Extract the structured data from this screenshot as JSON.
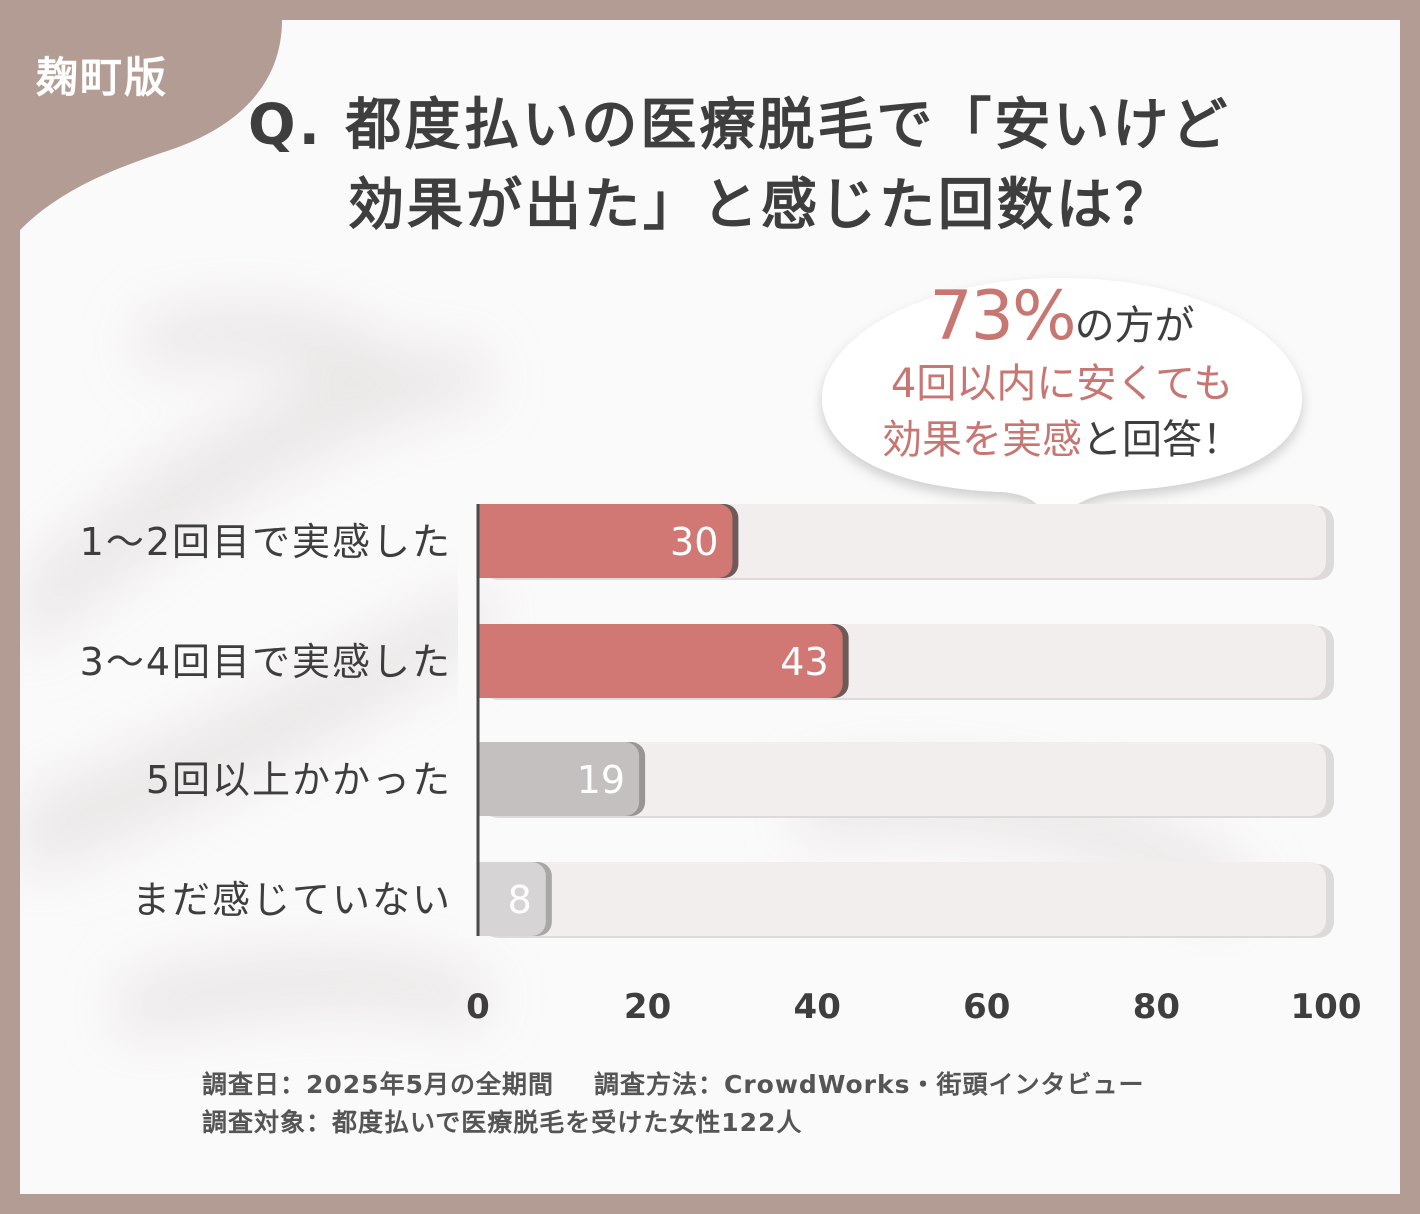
{
  "brand": {
    "label": "麹町版"
  },
  "title": {
    "line1": "Q. 都度払いの医療脱毛で「安いけど",
    "line2": "効果が出た」と感じた回数は？"
  },
  "callout": {
    "percent": "73%",
    "line1_suffix": "の方が",
    "line2": "4回以内に安くても",
    "line3_highlight": "効果を実感",
    "line3_rest": "と回答！"
  },
  "chart_data": {
    "type": "bar",
    "orientation": "horizontal",
    "categories": [
      "1〜2回目で実感した",
      "3〜4回目で実感した",
      "5回以上かかった",
      "まだ感じていない"
    ],
    "values": [
      30,
      43,
      19,
      8
    ],
    "value_labels": [
      "30",
      "43",
      "19",
      "8"
    ],
    "xlim": [
      0,
      100
    ],
    "x_ticks": [
      "0",
      "20",
      "40",
      "60",
      "80",
      "100"
    ],
    "tick_values": [
      0,
      20,
      40,
      60,
      80,
      100
    ],
    "grid": false,
    "bar_colors": [
      "#d17874",
      "#d17874",
      "#c4c0bf",
      "#d6d4d4"
    ],
    "bar_shadow_colors": [
      "#6e5a58",
      "#6e5a58",
      "#9a9595",
      "#a9a6a6"
    ],
    "track_color": "#f2eeee"
  },
  "footer": {
    "date": "調査日：2025年5月の全期間",
    "method": "調査方法：CrowdWorks・街頭インタビュー",
    "subject": "調査対象：都度払いで医療脱毛を受けた女性122人"
  },
  "colors": {
    "frame": "#b39c94",
    "accent": "#c87672",
    "text": "#3e3e3e"
  }
}
